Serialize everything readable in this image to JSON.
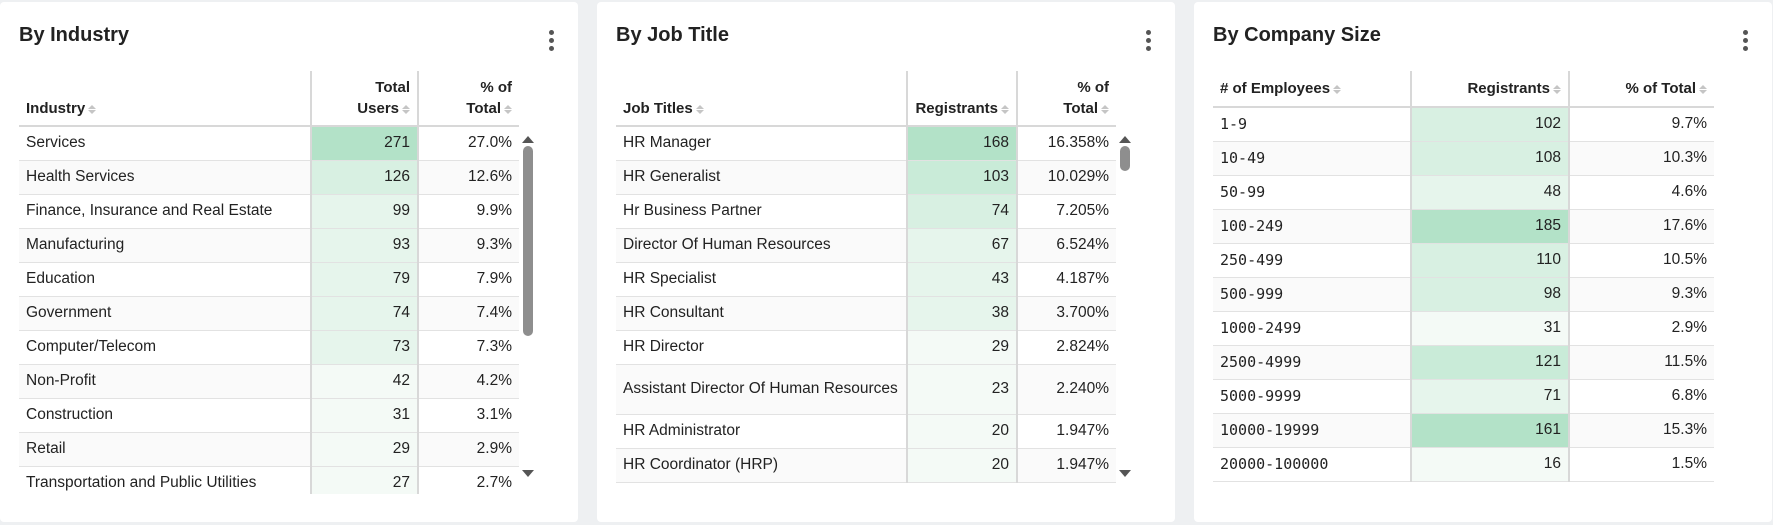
{
  "colors": {
    "page_bg": "#eef0f2",
    "card_bg": "#ffffff",
    "heat_scale": [
      "#f4faf6",
      "#e6f5ec",
      "#d8f0e2",
      "#c9ebd8",
      "#b3e2c8"
    ]
  },
  "industry": {
    "title": "By Industry",
    "menu_icon": "kebab-vertical-icon",
    "columns": {
      "name": "Industry",
      "count_line1": "Total",
      "count_line2": "Users",
      "pct_line1": "% of",
      "pct_line2": "Total"
    },
    "rows": [
      {
        "name": "Services",
        "count": "271",
        "pct": "27.0%",
        "level": 0.271
      },
      {
        "name": "Health Services",
        "count": "126",
        "pct": "12.6%",
        "level": 0.126
      },
      {
        "name": "Finance, Insurance and Real Estate",
        "count": "99",
        "pct": "9.9%",
        "level": 0.099
      },
      {
        "name": "Manufacturing",
        "count": "93",
        "pct": "9.3%",
        "level": 0.093
      },
      {
        "name": "Education",
        "count": "79",
        "pct": "7.9%",
        "level": 0.079
      },
      {
        "name": "Government",
        "count": "74",
        "pct": "7.4%",
        "level": 0.074
      },
      {
        "name": "Computer/Telecom",
        "count": "73",
        "pct": "7.3%",
        "level": 0.073
      },
      {
        "name": "Non-Profit",
        "count": "42",
        "pct": "4.2%",
        "level": 0.042
      },
      {
        "name": "Construction",
        "count": "31",
        "pct": "3.1%",
        "level": 0.031
      },
      {
        "name": "Retail",
        "count": "29",
        "pct": "2.9%",
        "level": 0.029
      },
      {
        "name": "Transportation and Public Utilities",
        "count": "27",
        "pct": "2.7%",
        "level": 0.027
      }
    ],
    "scroll": {
      "thumb_fraction": 0.45,
      "position": 0.0
    }
  },
  "job_title": {
    "title": "By Job Title",
    "menu_icon": "kebab-vertical-icon",
    "columns": {
      "name": "Job Titles",
      "count_line1": "",
      "count_line2": "Registrants",
      "pct_line1": "% of",
      "pct_line2": "Total"
    },
    "rows": [
      {
        "name": "HR Manager",
        "count": "168",
        "pct": "16.358%",
        "level": 0.16358
      },
      {
        "name": "HR Generalist",
        "count": "103",
        "pct": "10.029%",
        "level": 0.10029
      },
      {
        "name": "Hr Business Partner",
        "count": "74",
        "pct": "7.205%",
        "level": 0.07205
      },
      {
        "name": "Director Of Human Resources",
        "count": "67",
        "pct": "6.524%",
        "level": 0.06524
      },
      {
        "name": "HR Specialist",
        "count": "43",
        "pct": "4.187%",
        "level": 0.04187
      },
      {
        "name": "HR Consultant",
        "count": "38",
        "pct": "3.700%",
        "level": 0.037
      },
      {
        "name": "HR Director",
        "count": "29",
        "pct": "2.824%",
        "level": 0.02824
      },
      {
        "name": "Assistant Director Of Human Resources",
        "count": "23",
        "pct": "2.240%",
        "level": 0.0224
      },
      {
        "name": "HR Administrator",
        "count": "20",
        "pct": "1.947%",
        "level": 0.01947
      },
      {
        "name": "HR Coordinator (HRP)",
        "count": "20",
        "pct": "1.947%",
        "level": 0.01947
      }
    ],
    "scroll": {
      "thumb_fraction": 0.07,
      "position": 0.0
    }
  },
  "company_size": {
    "title": "By Company Size",
    "menu_icon": "kebab-vertical-icon",
    "columns": {
      "name": "# of Employees",
      "count": "Registrants",
      "pct": "% of Total"
    },
    "rows": [
      {
        "name": "1-9",
        "count": "102",
        "pct": "9.7%",
        "level": 0.097
      },
      {
        "name": "10-49",
        "count": "108",
        "pct": "10.3%",
        "level": 0.103
      },
      {
        "name": "50-99",
        "count": "48",
        "pct": "4.6%",
        "level": 0.046
      },
      {
        "name": "100-249",
        "count": "185",
        "pct": "17.6%",
        "level": 0.176
      },
      {
        "name": "250-499",
        "count": "110",
        "pct": "10.5%",
        "level": 0.105
      },
      {
        "name": "500-999",
        "count": "98",
        "pct": "9.3%",
        "level": 0.093
      },
      {
        "name": "1000-2499",
        "count": "31",
        "pct": "2.9%",
        "level": 0.029
      },
      {
        "name": "2500-4999",
        "count": "121",
        "pct": "11.5%",
        "level": 0.115
      },
      {
        "name": "5000-9999",
        "count": "71",
        "pct": "6.8%",
        "level": 0.068
      },
      {
        "name": "10000-19999",
        "count": "161",
        "pct": "15.3%",
        "level": 0.153
      },
      {
        "name": "20000-100000",
        "count": "16",
        "pct": "1.5%",
        "level": 0.015
      }
    ]
  }
}
